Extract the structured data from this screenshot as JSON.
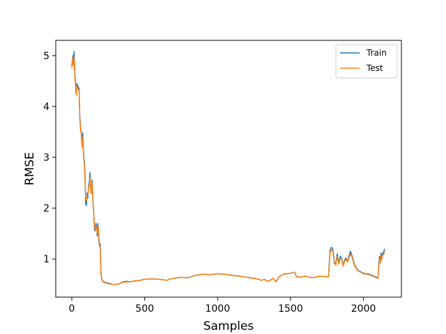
{
  "chart_data": {
    "type": "line",
    "title": "",
    "xlabel": "Samples",
    "ylabel": "RMSE",
    "xlim": [
      -110,
      2260
    ],
    "ylim": [
      0.25,
      5.3
    ],
    "xticks": [
      0,
      500,
      1000,
      1500,
      2000
    ],
    "yticks": [
      1,
      2,
      3,
      4,
      5
    ],
    "grid": false,
    "legend_position": "top-right",
    "series": [
      {
        "name": "Train",
        "color": "#1f77b4",
        "x": [
          0,
          8,
          12,
          16,
          20,
          25,
          30,
          35,
          42,
          50,
          55,
          60,
          65,
          70,
          75,
          80,
          85,
          90,
          95,
          100,
          105,
          110,
          115,
          120,
          125,
          130,
          135,
          140,
          145,
          150,
          155,
          160,
          165,
          170,
          175,
          180,
          185,
          190,
          195,
          200,
          205,
          210,
          220,
          240,
          260,
          280,
          300,
          320,
          350,
          380,
          400,
          430,
          470,
          500,
          550,
          600,
          650,
          680,
          700,
          750,
          800,
          850,
          900,
          950,
          1000,
          1050,
          1100,
          1150,
          1200,
          1250,
          1280,
          1300,
          1320,
          1340,
          1360,
          1380,
          1400,
          1420,
          1450,
          1500,
          1530,
          1540,
          1560,
          1600,
          1650,
          1700,
          1760,
          1770,
          1775,
          1780,
          1790,
          1800,
          1810,
          1820,
          1830,
          1840,
          1850,
          1860,
          1870,
          1880,
          1890,
          1900,
          1910,
          1920,
          1930,
          1940,
          1960,
          1980,
          2000,
          2040,
          2080,
          2100,
          2105,
          2110,
          2115,
          2120,
          2125,
          2130,
          2140,
          2145
        ],
        "y": [
          4.8,
          5.0,
          4.85,
          5.08,
          4.7,
          4.5,
          4.25,
          4.45,
          4.4,
          4.35,
          3.8,
          3.6,
          3.5,
          3.25,
          3.48,
          3.1,
          2.95,
          2.7,
          2.1,
          2.05,
          2.3,
          2.2,
          2.45,
          2.5,
          2.7,
          2.4,
          2.3,
          2.55,
          2.1,
          1.95,
          1.6,
          1.55,
          1.7,
          1.65,
          1.45,
          1.7,
          1.4,
          1.25,
          1.3,
          0.75,
          0.62,
          0.57,
          0.55,
          0.53,
          0.52,
          0.5,
          0.5,
          0.51,
          0.55,
          0.56,
          0.55,
          0.57,
          0.58,
          0.6,
          0.61,
          0.6,
          0.58,
          0.61,
          0.62,
          0.64,
          0.63,
          0.68,
          0.7,
          0.69,
          0.71,
          0.7,
          0.68,
          0.66,
          0.64,
          0.62,
          0.6,
          0.58,
          0.6,
          0.56,
          0.58,
          0.62,
          0.55,
          0.65,
          0.7,
          0.72,
          0.74,
          0.65,
          0.64,
          0.66,
          0.63,
          0.66,
          0.65,
          1.15,
          1.2,
          1.23,
          1.2,
          0.95,
          0.9,
          1.1,
          0.92,
          1.05,
          1.02,
          0.88,
          0.98,
          1.02,
          0.95,
          1.05,
          1.15,
          1.08,
          0.98,
          0.88,
          0.78,
          0.75,
          0.72,
          0.7,
          0.65,
          0.63,
          0.9,
          1.05,
          0.95,
          1.12,
          1.0,
          1.1,
          1.15,
          1.2
        ]
      },
      {
        "name": "Test",
        "color": "#ff7f0e",
        "x": [
          0,
          8,
          12,
          16,
          20,
          25,
          30,
          35,
          42,
          50,
          55,
          60,
          65,
          70,
          75,
          80,
          85,
          90,
          95,
          100,
          105,
          110,
          115,
          120,
          125,
          130,
          135,
          140,
          145,
          150,
          155,
          160,
          165,
          170,
          175,
          180,
          185,
          190,
          195,
          200,
          205,
          210,
          220,
          240,
          260,
          280,
          300,
          320,
          350,
          380,
          400,
          430,
          470,
          500,
          550,
          600,
          650,
          680,
          700,
          750,
          800,
          850,
          900,
          950,
          1000,
          1050,
          1100,
          1150,
          1200,
          1250,
          1280,
          1300,
          1320,
          1340,
          1360,
          1380,
          1400,
          1420,
          1450,
          1500,
          1530,
          1540,
          1560,
          1600,
          1650,
          1700,
          1760,
          1770,
          1775,
          1780,
          1790,
          1800,
          1810,
          1820,
          1830,
          1840,
          1850,
          1860,
          1870,
          1880,
          1890,
          1900,
          1910,
          1920,
          1930,
          1940,
          1960,
          1980,
          2000,
          2040,
          2080,
          2100,
          2105,
          2110,
          2115,
          2120,
          2125,
          2130,
          2140,
          2145
        ],
        "y": [
          4.75,
          4.95,
          4.8,
          4.98,
          4.65,
          4.45,
          4.22,
          4.4,
          4.35,
          4.3,
          3.75,
          3.55,
          3.45,
          3.2,
          3.4,
          3.05,
          2.9,
          2.65,
          2.2,
          2.15,
          2.25,
          2.25,
          2.4,
          2.45,
          2.6,
          2.35,
          2.28,
          2.5,
          2.15,
          1.9,
          1.65,
          1.6,
          1.65,
          1.6,
          1.5,
          1.65,
          1.45,
          1.3,
          1.25,
          0.72,
          0.6,
          0.56,
          0.54,
          0.52,
          0.51,
          0.5,
          0.5,
          0.51,
          0.54,
          0.55,
          0.55,
          0.57,
          0.58,
          0.6,
          0.61,
          0.6,
          0.58,
          0.61,
          0.62,
          0.64,
          0.63,
          0.68,
          0.7,
          0.69,
          0.71,
          0.7,
          0.68,
          0.66,
          0.64,
          0.62,
          0.6,
          0.58,
          0.6,
          0.56,
          0.58,
          0.62,
          0.55,
          0.65,
          0.7,
          0.72,
          0.74,
          0.65,
          0.64,
          0.66,
          0.63,
          0.66,
          0.65,
          1.1,
          1.15,
          1.18,
          1.15,
          0.92,
          0.88,
          1.05,
          0.9,
          1.0,
          1.0,
          0.86,
          0.95,
          1.0,
          0.93,
          1.02,
          1.1,
          1.05,
          0.96,
          0.86,
          0.77,
          0.74,
          0.71,
          0.69,
          0.64,
          0.62,
          0.85,
          1.0,
          0.92,
          1.08,
          0.98,
          1.06,
          1.1,
          1.15
        ]
      }
    ]
  }
}
